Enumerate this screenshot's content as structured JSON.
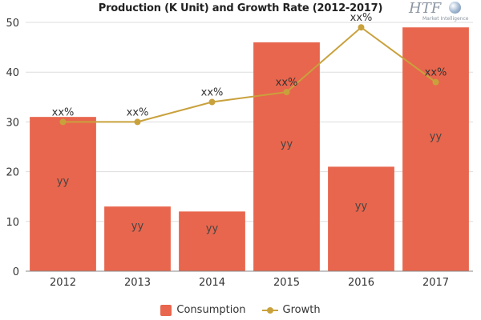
{
  "logo": {
    "text": "HTF",
    "subtext": "Market Intelligence"
  },
  "colors": {
    "bar": "#e8664d",
    "line": "#c9a13c",
    "grid": "#dddddd",
    "axis": "#333333",
    "bar_label": "#444444"
  },
  "chart_data": {
    "type": "bar",
    "title": "Production (K Unit) and Growth Rate (2012-2017)",
    "xlabel": "",
    "ylabel": "",
    "categories": [
      "2012",
      "2013",
      "2014",
      "2015",
      "2016",
      "2017"
    ],
    "ylim": [
      0,
      50
    ],
    "yticks": [
      "0",
      "10",
      "20",
      "30",
      "40",
      "50"
    ],
    "grid": true,
    "legend_position": "bottom",
    "series": [
      {
        "name": "Consumption",
        "type": "bar",
        "values": [
          31,
          13,
          12,
          46,
          21,
          49
        ],
        "labels": [
          "yy",
          "yy",
          "yy",
          "yy",
          "yy",
          "yy"
        ]
      },
      {
        "name": "Growth",
        "type": "line",
        "values": [
          30,
          30,
          34,
          36,
          49,
          38
        ],
        "labels": [
          "xx%",
          "xx%",
          "xx%",
          "xx%",
          "xx%",
          "xx%"
        ]
      }
    ]
  }
}
